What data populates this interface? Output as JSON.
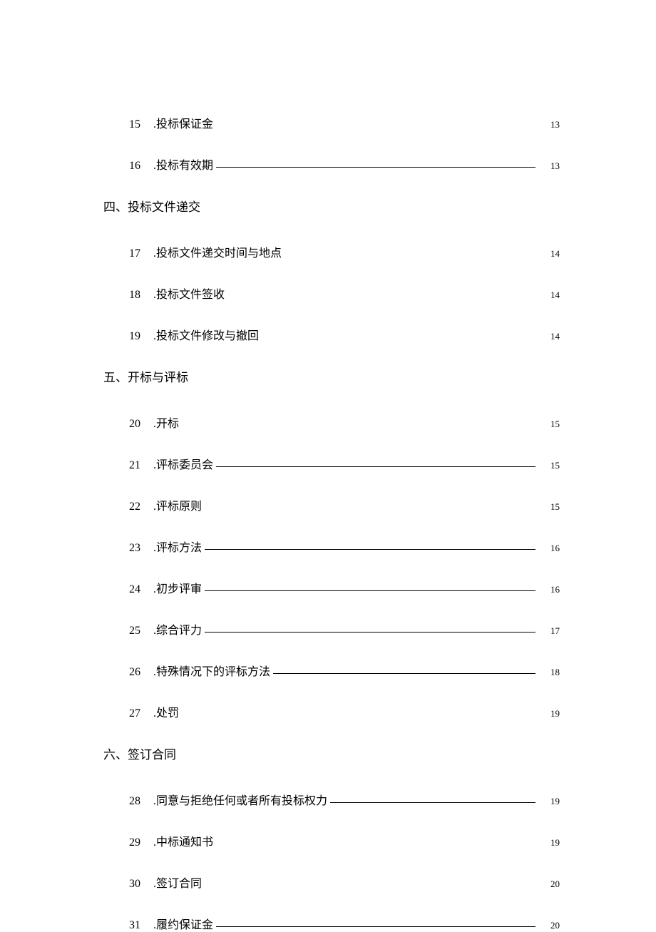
{
  "colors": {
    "text": "#000000",
    "background": "#ffffff",
    "leader": "#000000"
  },
  "typography": {
    "body_fontsize": 16,
    "heading_fontsize": 17,
    "page_fontsize": 13,
    "font_family": "SimSun"
  },
  "toc": {
    "items_before_section4": [
      {
        "num": "15",
        "title": ".投标保证金",
        "page": "13",
        "underline": false
      },
      {
        "num": "16",
        "title": ".投标有效期",
        "page": "13",
        "underline": true
      }
    ],
    "section4": {
      "heading": "四、投标文件递交",
      "items": [
        {
          "num": "17",
          "title": ".投标文件递交时间与地点",
          "page": "14",
          "underline": false
        },
        {
          "num": "18",
          "title": ".投标文件签收",
          "page": "14",
          "underline": false
        },
        {
          "num": "19",
          "title": ".投标文件修改与撤回",
          "page": "14",
          "underline": false
        }
      ]
    },
    "section5": {
      "heading": "五、开标与评标",
      "items": [
        {
          "num": "20",
          "title": ".开标",
          "page": "15",
          "underline": false
        },
        {
          "num": "21",
          "title": ".评标委员会",
          "page": "15",
          "underline": true
        },
        {
          "num": "22",
          "title": ".评标原则",
          "page": "15",
          "underline": false
        },
        {
          "num": "23",
          "title": ".评标方法",
          "page": "16",
          "underline": true
        },
        {
          "num": "24",
          "title": ".初步评审",
          "page": "16",
          "underline": true
        },
        {
          "num": "25",
          "title": ".综合评力",
          "page": "17",
          "underline": true
        },
        {
          "num": "26",
          "title": ".特殊情况下的评标方法",
          "page": "18",
          "underline": true
        },
        {
          "num": "27",
          "title": ".处罚",
          "page": "19",
          "underline": false
        }
      ]
    },
    "section6": {
      "heading": "六、签订合同",
      "items": [
        {
          "num": "28",
          "title": ".同意与拒绝任何或者所有投标权力",
          "page": "19",
          "underline": true
        },
        {
          "num": "29",
          "title": ".中标通知书",
          "page": "19",
          "underline": false
        },
        {
          "num": "30",
          "title": ".签订合同",
          "page": "20",
          "underline": false
        },
        {
          "num": "31",
          "title": ".履约保证金",
          "page": "20",
          "underline": true
        }
      ]
    }
  }
}
